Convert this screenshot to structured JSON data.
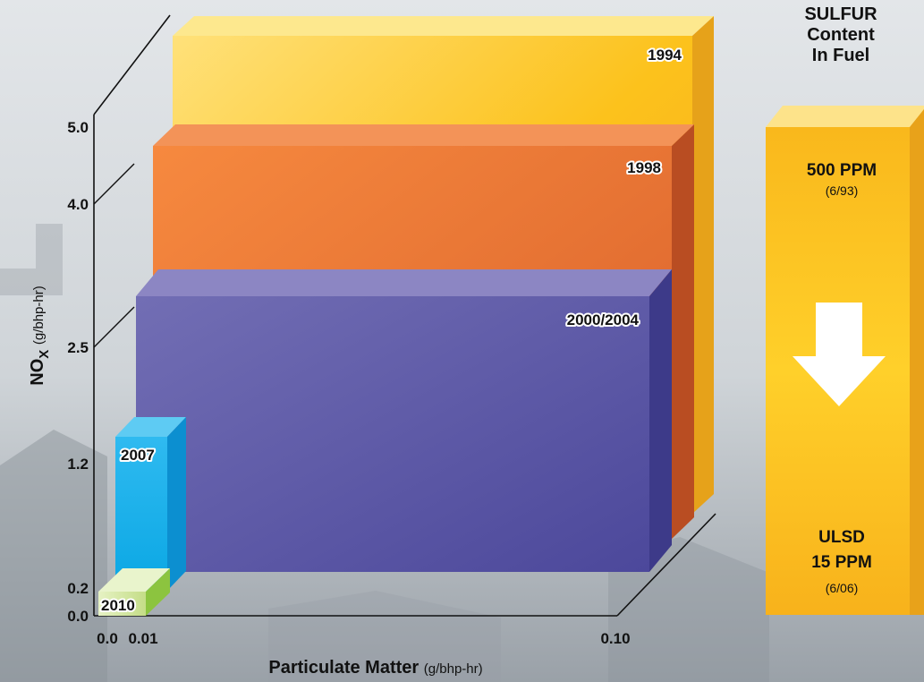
{
  "colors": {
    "bar_1994": "#f7b21a",
    "bar_1998": "#ea6f2a",
    "bar_2000_2004": "#5a56a6",
    "bar_2007": "#12aee8",
    "bar_2010": "#cfe39a",
    "sulfur_column": "#f9bd1e"
  },
  "chart_data": {
    "type": "bar",
    "title": "",
    "xlabel": "Particulate Matter",
    "xlabel_units": "(g/bhp-hr)",
    "ylabel": "NO",
    "ylabel_subscript": "X",
    "ylabel_units": "(g/bhp-hr)",
    "x_ticks": [
      "0.0",
      "0.01",
      "0.10"
    ],
    "y_ticks": [
      "0.0",
      "0.2",
      "1.2",
      "2.5",
      "4.0",
      "5.0"
    ],
    "series": [
      {
        "name": "1994",
        "pm": 0.1,
        "nox": 5.0
      },
      {
        "name": "1998",
        "pm": 0.1,
        "nox": 4.0
      },
      {
        "name": "2000/2004",
        "pm": 0.1,
        "nox": 2.5
      },
      {
        "name": "2007",
        "pm": 0.01,
        "nox": 1.2
      },
      {
        "name": "2010",
        "pm": 0.01,
        "nox": 0.2
      }
    ]
  },
  "sulfur": {
    "title_line1": "SULFUR",
    "title_line2": "Content",
    "title_line3": "In Fuel",
    "top_value": "500 PPM",
    "top_date": "(6/93)",
    "bottom_value_line1": "ULSD",
    "bottom_value_line2": "15 PPM",
    "bottom_date": "(6/06)"
  }
}
